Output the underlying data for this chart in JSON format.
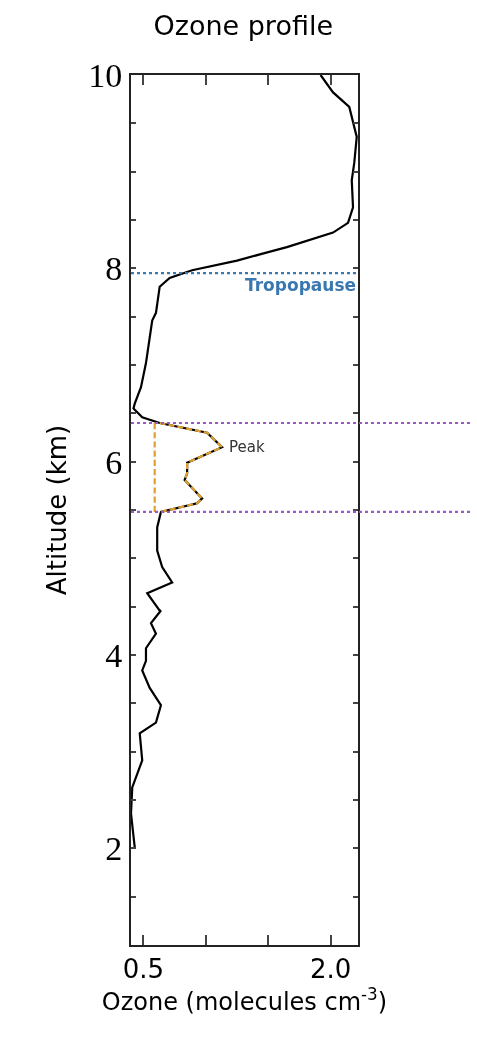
{
  "chart_data": {
    "type": "line",
    "title": "Ozone profile",
    "xlabel": "Ozone (molecules cm$^{-3}$)",
    "ylabel": "Altitude (km)",
    "xlim": [
      0.4,
      2.22
    ],
    "ylim": [
      1,
      10
    ],
    "xticks": [
      0.5,
      {
        "value": 1.0,
        "label": null
      },
      {
        "value": 1.5,
        "label": null
      },
      {
        "value": 2.0,
        "label": "2.0"
      }
    ],
    "yticks": [
      {
        "value": 1.5,
        "label": null
      },
      2,
      {
        "value": 2.5,
        "label": null
      },
      {
        "value": 3,
        "label": null
      },
      {
        "value": 3.5,
        "label": null
      },
      4,
      {
        "value": 4.5,
        "label": null
      },
      {
        "value": 5,
        "label": null
      },
      {
        "value": 5.5,
        "label": null
      },
      6,
      {
        "value": 6.5,
        "label": null
      },
      {
        "value": 7,
        "label": null
      },
      {
        "value": 7.5,
        "label": null
      },
      8,
      {
        "value": 8.5,
        "label": null
      },
      {
        "value": 9,
        "label": null
      },
      {
        "value": 9.5,
        "label": null
      },
      10
    ],
    "marker": "none",
    "series": [
      {
        "color": "#000000",
        "line_style": "solid",
        "x": [
          0.43,
          0.4,
          0.41,
          0.49,
          0.47,
          0.6,
          0.64,
          0.55,
          0.49,
          0.52,
          0.52,
          0.6,
          0.56,
          0.64,
          0.63,
          0.53,
          0.73,
          0.65,
          0.61,
          0.61,
          0.64,
          0.93,
          0.97,
          0.83,
          0.85,
          0.85,
          1.13,
          1.01,
          0.63,
          0.49,
          0.42,
          0.43,
          0.48,
          0.52,
          0.57,
          0.6,
          0.63,
          0.71,
          0.89,
          1.25,
          1.65,
          2.02,
          2.14,
          2.18,
          2.17,
          2.19,
          2.21,
          2.15,
          2.02,
          1.92
        ],
        "values": [
          2.01,
          2.36,
          2.63,
          2.91,
          3.19,
          3.3,
          3.48,
          3.66,
          3.84,
          3.94,
          4.07,
          4.22,
          4.33,
          4.46,
          4.46,
          4.64,
          4.75,
          4.91,
          5.08,
          5.32,
          5.48,
          5.57,
          5.62,
          5.81,
          5.88,
          5.99,
          6.15,
          6.3,
          6.4,
          6.46,
          6.55,
          6.6,
          6.77,
          7.02,
          7.46,
          7.54,
          7.81,
          7.9,
          7.98,
          8.08,
          8.22,
          8.37,
          8.47,
          8.63,
          8.91,
          9.09,
          9.36,
          9.67,
          9.82,
          10
        ]
      },
      {
        "color": "#e0a030",
        "line_style": "dashed",
        "x": [
          0.63,
          1.01,
          1.13,
          0.85,
          0.85,
          0.83,
          0.97,
          0.93,
          0.64
        ],
        "values": [
          6.4,
          6.3,
          6.15,
          5.99,
          5.88,
          5.81,
          5.62,
          5.57,
          5.48
        ]
      },
      {
        "color": "#e0a030",
        "line_style": "dashed",
        "x": [
          0.59,
          0.59
        ],
        "values": [
          5.48,
          6.4
        ]
      }
    ],
    "ref_lines": [
      {
        "axis": "y",
        "value": 7.95,
        "label": "Tropopause",
        "color": "#3a78b0",
        "line_style": "dotted"
      },
      {
        "axis": "y",
        "value": 6.4,
        "color": "#9b59c6",
        "line_style": "dotted"
      },
      {
        "axis": "y",
        "value": 5.48,
        "color": "#9b59c6",
        "line_style": "dotted"
      }
    ],
    "annotations": [
      {
        "text": "Peak",
        "x": 1.13,
        "y": 6.15
      }
    ]
  }
}
